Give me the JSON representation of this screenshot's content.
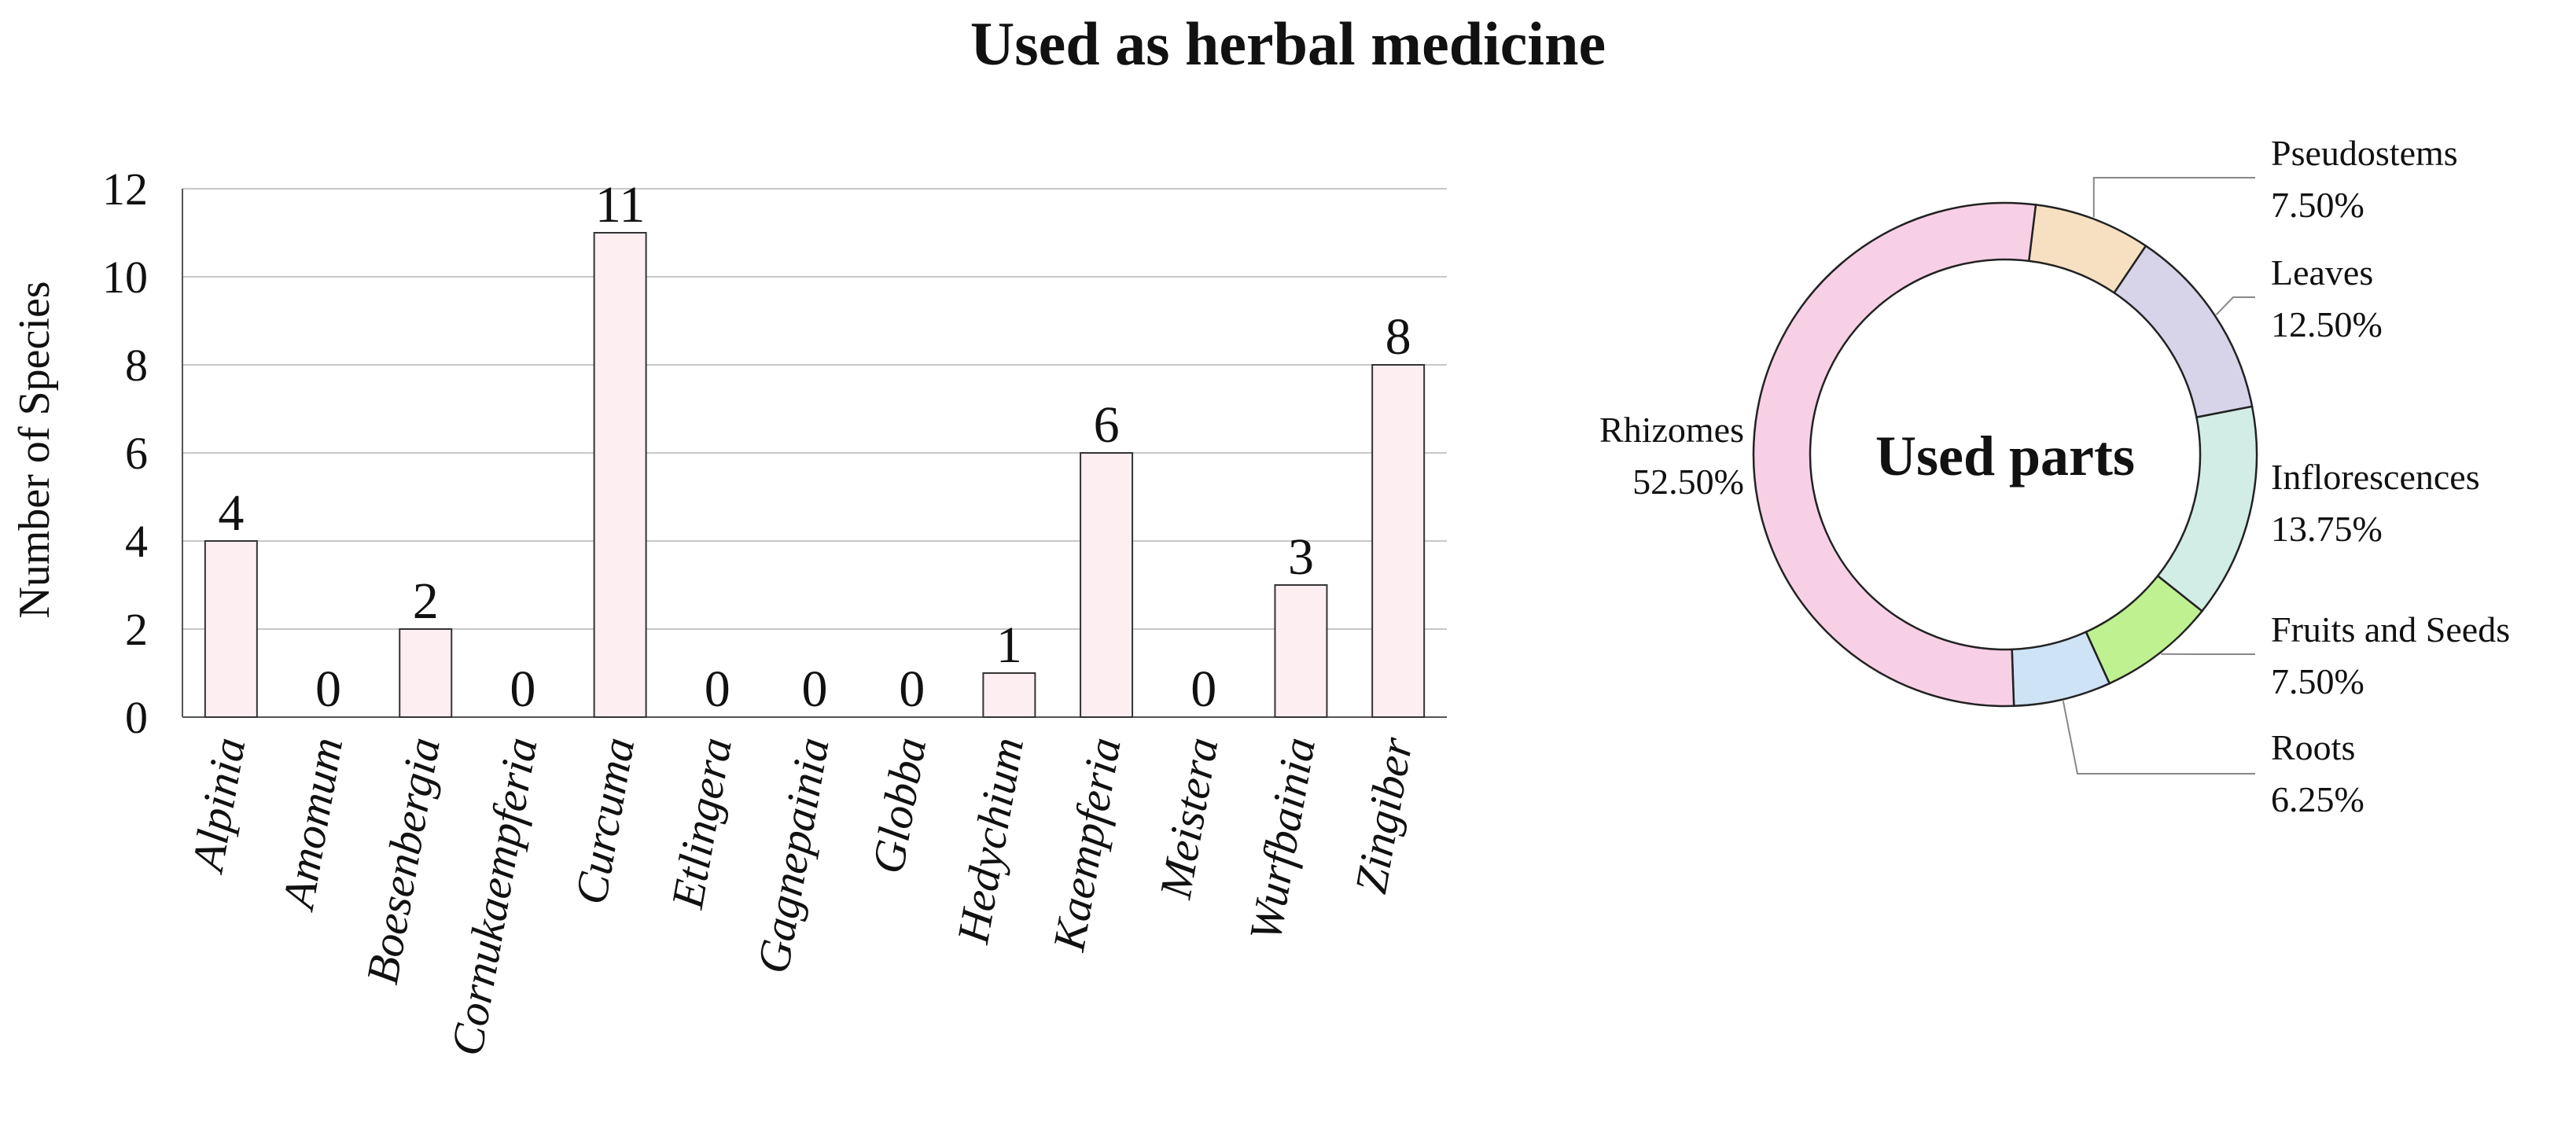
{
  "title": "Used as herbal medicine",
  "chart_data": [
    {
      "type": "bar",
      "title": "",
      "xlabel": "",
      "ylabel": "Number of Species",
      "ylim": [
        0,
        12
      ],
      "yticks": [
        0,
        2,
        4,
        6,
        8,
        10,
        12
      ],
      "grid": true,
      "categories": [
        "Alpinia",
        "Amomum",
        "Boesenbergia",
        "Cornukaempferia",
        "Curcuma",
        "Etlingera",
        "Gagnepainia",
        "Globba",
        "Hedychium",
        "Kaempferia",
        "Meistera",
        "Wurfbainia",
        "Zingiber"
      ],
      "values": [
        4,
        0,
        2,
        0,
        11,
        0,
        0,
        0,
        1,
        6,
        0,
        3,
        8
      ],
      "data_labels": true,
      "bar_color": "#fdeef2",
      "bar_edge_color": "#333333"
    },
    {
      "type": "pie",
      "style": "donut",
      "center_label": "Used parts",
      "slices": [
        {
          "label": "Pseudostems",
          "value": 7.5,
          "text": "7.50%",
          "color": "#f7e0c2"
        },
        {
          "label": "Leaves",
          "value": 12.5,
          "text": "12.50%",
          "color": "#d7d4ea"
        },
        {
          "label": "Inflorescences",
          "value": 13.75,
          "text": "13.75%",
          "color": "#d2ede6"
        },
        {
          "label": "Fruits and Seeds",
          "value": 7.5,
          "text": "7.50%",
          "color": "#bff191"
        },
        {
          "label": "Roots",
          "value": 6.25,
          "text": "6.25%",
          "color": "#cfe3f6"
        },
        {
          "label": "Rhizomes",
          "value": 52.5,
          "text": "52.50%",
          "color": "#f8d0e6"
        }
      ]
    }
  ]
}
